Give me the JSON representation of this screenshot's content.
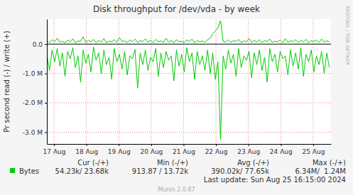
{
  "chart_data": {
    "type": "line",
    "title": "Disk throughput for /dev/vda - by week",
    "y_label": "Pr second read (-) / write (+)",
    "grid": true,
    "x": [
      16.78,
      16.86,
      16.94,
      17.02,
      17.1,
      17.18,
      17.26,
      17.34,
      17.42,
      17.5,
      17.58,
      17.66,
      17.74,
      17.82,
      17.9,
      17.98,
      18.06,
      18.14,
      18.22,
      18.3,
      18.38,
      18.46,
      18.54,
      18.62,
      18.7,
      18.78,
      18.86,
      18.94,
      19.02,
      19.1,
      19.18,
      19.26,
      19.34,
      19.42,
      19.5,
      19.58,
      19.66,
      19.74,
      19.82,
      19.9,
      19.98,
      20.06,
      20.14,
      20.22,
      20.3,
      20.38,
      20.46,
      20.54,
      20.62,
      20.7,
      20.78,
      20.86,
      20.94,
      21.02,
      21.1,
      21.18,
      21.26,
      21.34,
      21.42,
      21.5,
      21.58,
      21.66,
      21.74,
      21.82,
      21.9,
      21.98,
      22.06,
      22.14,
      22.22,
      22.3,
      22.38,
      22.46,
      22.54,
      22.62,
      22.7,
      22.78,
      22.86,
      22.94,
      23.02,
      23.1,
      23.18,
      23.26,
      23.34,
      23.42,
      23.5,
      23.58,
      23.66,
      23.74,
      23.82,
      23.9,
      23.98,
      24.06,
      24.14,
      24.22,
      24.3,
      24.38,
      24.46,
      24.54,
      24.62,
      24.7,
      24.78,
      24.86,
      24.94,
      25.02,
      25.1,
      25.18,
      25.26,
      25.34,
      25.42,
      25.5
    ],
    "xlim": [
      16.78,
      25.55
    ],
    "xticks": [
      {
        "value": 17,
        "label": "17 Aug"
      },
      {
        "value": 18,
        "label": "18 Aug"
      },
      {
        "value": 19,
        "label": "19 Aug"
      },
      {
        "value": 20,
        "label": "20 Aug"
      },
      {
        "value": 21,
        "label": "21 Aug"
      },
      {
        "value": 22,
        "label": "22 Aug"
      },
      {
        "value": 23,
        "label": "23 Aug"
      },
      {
        "value": 24,
        "label": "24 Aug"
      },
      {
        "value": 25,
        "label": "25 Aug"
      }
    ],
    "ylim": [
      -3400000,
      850000
    ],
    "yticks": [
      {
        "value": -3000000,
        "label": "-3.0 M"
      },
      {
        "value": -2000000,
        "label": "-2.0 M"
      },
      {
        "value": -1000000,
        "label": "-1.0 M"
      },
      {
        "value": 0,
        "label": "0.0"
      }
    ],
    "series": [
      {
        "name": "Bytes",
        "color": "#00cc00",
        "values": [
          120000,
          50000,
          150000,
          80000,
          200000,
          60000,
          100000,
          40000,
          140000,
          70000,
          180000,
          50000,
          110000,
          90000,
          250000,
          60000,
          130000,
          80000,
          160000,
          50000,
          120000,
          70000,
          190000,
          50000,
          100000,
          80000,
          150000,
          60000,
          220000,
          90000,
          110000,
          50000,
          140000,
          80000,
          170000,
          60000,
          120000,
          90000,
          180000,
          70000,
          130000,
          50000,
          160000,
          80000,
          110000,
          60000,
          200000,
          70000,
          120000,
          50000,
          150000,
          80000,
          100000,
          60000,
          140000,
          90000,
          170000,
          50000,
          120000,
          80000,
          110000,
          60000,
          150000,
          200000,
          350000,
          450000,
          550000,
          800000,
          100000,
          70000,
          140000,
          60000,
          120000,
          90000,
          160000,
          50000,
          110000,
          80000,
          190000,
          60000,
          130000,
          70000,
          150000,
          50000,
          120000,
          90000,
          170000,
          60000,
          100000,
          80000,
          140000,
          50000,
          180000,
          70000,
          110000,
          90000,
          150000,
          60000,
          130000,
          80000,
          160000,
          50000,
          120000,
          90000,
          140000,
          60000,
          170000,
          70000,
          110000,
          80000
        ]
      },
      {
        "color": "#00cc00",
        "values": [
          -350000,
          -900000,
          -200000,
          -600000,
          -150000,
          -750000,
          -300000,
          -1100000,
          -250000,
          -500000,
          -120000,
          -800000,
          -400000,
          -1300000,
          -200000,
          -650000,
          -350000,
          -950000,
          -100000,
          -550000,
          -300000,
          -1000000,
          -200000,
          -700000,
          -450000,
          -1200000,
          -150000,
          -600000,
          -350000,
          -850000,
          -250000,
          -1050000,
          -400000,
          -500000,
          -180000,
          -1500000,
          -300000,
          -700000,
          -200000,
          -900000,
          -450000,
          -600000,
          -150000,
          -1100000,
          -300000,
          -800000,
          -250000,
          -550000,
          -400000,
          -1250000,
          -200000,
          -750000,
          -350000,
          -950000,
          -120000,
          -600000,
          -300000,
          -1200000,
          -250000,
          -700000,
          -400000,
          -900000,
          -200000,
          -1000000,
          -300000,
          -1200000,
          -600000,
          -3250000,
          -400000,
          -850000,
          -200000,
          -650000,
          -350000,
          -1100000,
          -150000,
          -800000,
          -400000,
          -550000,
          -250000,
          -1150000,
          -300000,
          -700000,
          -200000,
          -900000,
          -450000,
          -1300000,
          -150000,
          -600000,
          -350000,
          -950000,
          -250000,
          -500000,
          -400000,
          -1050000,
          -200000,
          -750000,
          -300000,
          -850000,
          -120000,
          -1100000,
          -350000,
          -600000,
          -200000,
          -950000,
          -400000,
          -700000,
          -250000,
          -1000000,
          -300000,
          -800000
        ]
      }
    ],
    "legend_table": {
      "columns": [
        "Cur (-/+)",
        "Min (-/+)",
        "Avg (-/+)",
        "Max (-/+)"
      ],
      "cells": [
        "54.23k/ 23.68k",
        "913.87 / 13.72k",
        "390.02k/ 77.65k",
        "6.34M/  1.24M"
      ]
    },
    "footer": "Last update: Sun Aug 25 16:15:00 2024",
    "credit": "Munin 2.0.67",
    "side_text": "RRDTOOL / TOBI OETIKER"
  }
}
